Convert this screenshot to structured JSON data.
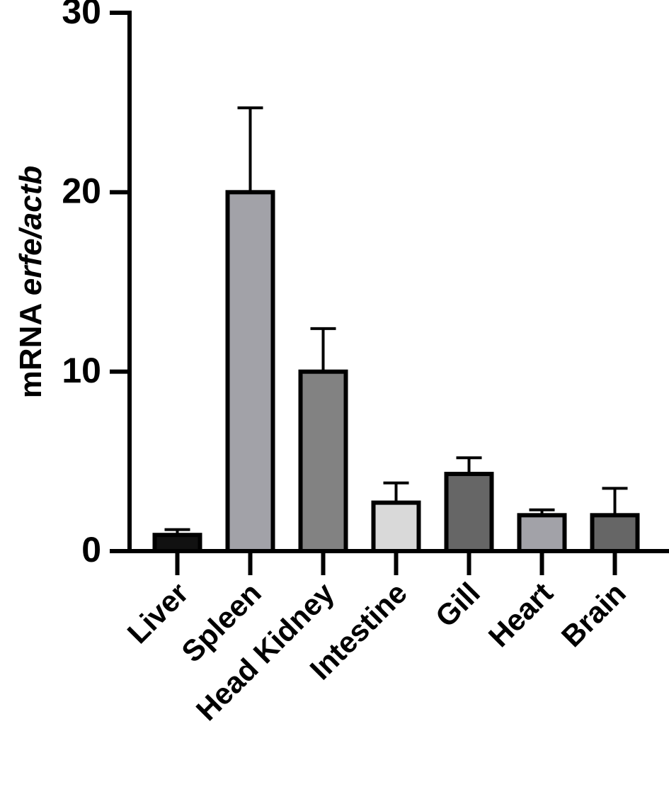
{
  "chart_data": {
    "type": "bar",
    "ylabel": [
      "mRNA",
      "erfe/actb"
    ],
    "categories": [
      "Liver",
      "Spleen",
      "Head Kidney",
      "Intestine",
      "Gill",
      "Heart",
      "Brain"
    ],
    "values": [
      0.9,
      20,
      10,
      2.7,
      4.3,
      2.0,
      2.0
    ],
    "errors": [
      0.3,
      4.7,
      2.4,
      1.1,
      0.9,
      0.3,
      1.5
    ],
    "colors": [
      "#111111",
      "#a2a2a8",
      "#828282",
      "#d9d9d9",
      "#666666",
      "#a2a2a8",
      "#666666"
    ],
    "ylim": [
      0,
      30
    ],
    "yticks": [
      0,
      10,
      20,
      30
    ]
  }
}
